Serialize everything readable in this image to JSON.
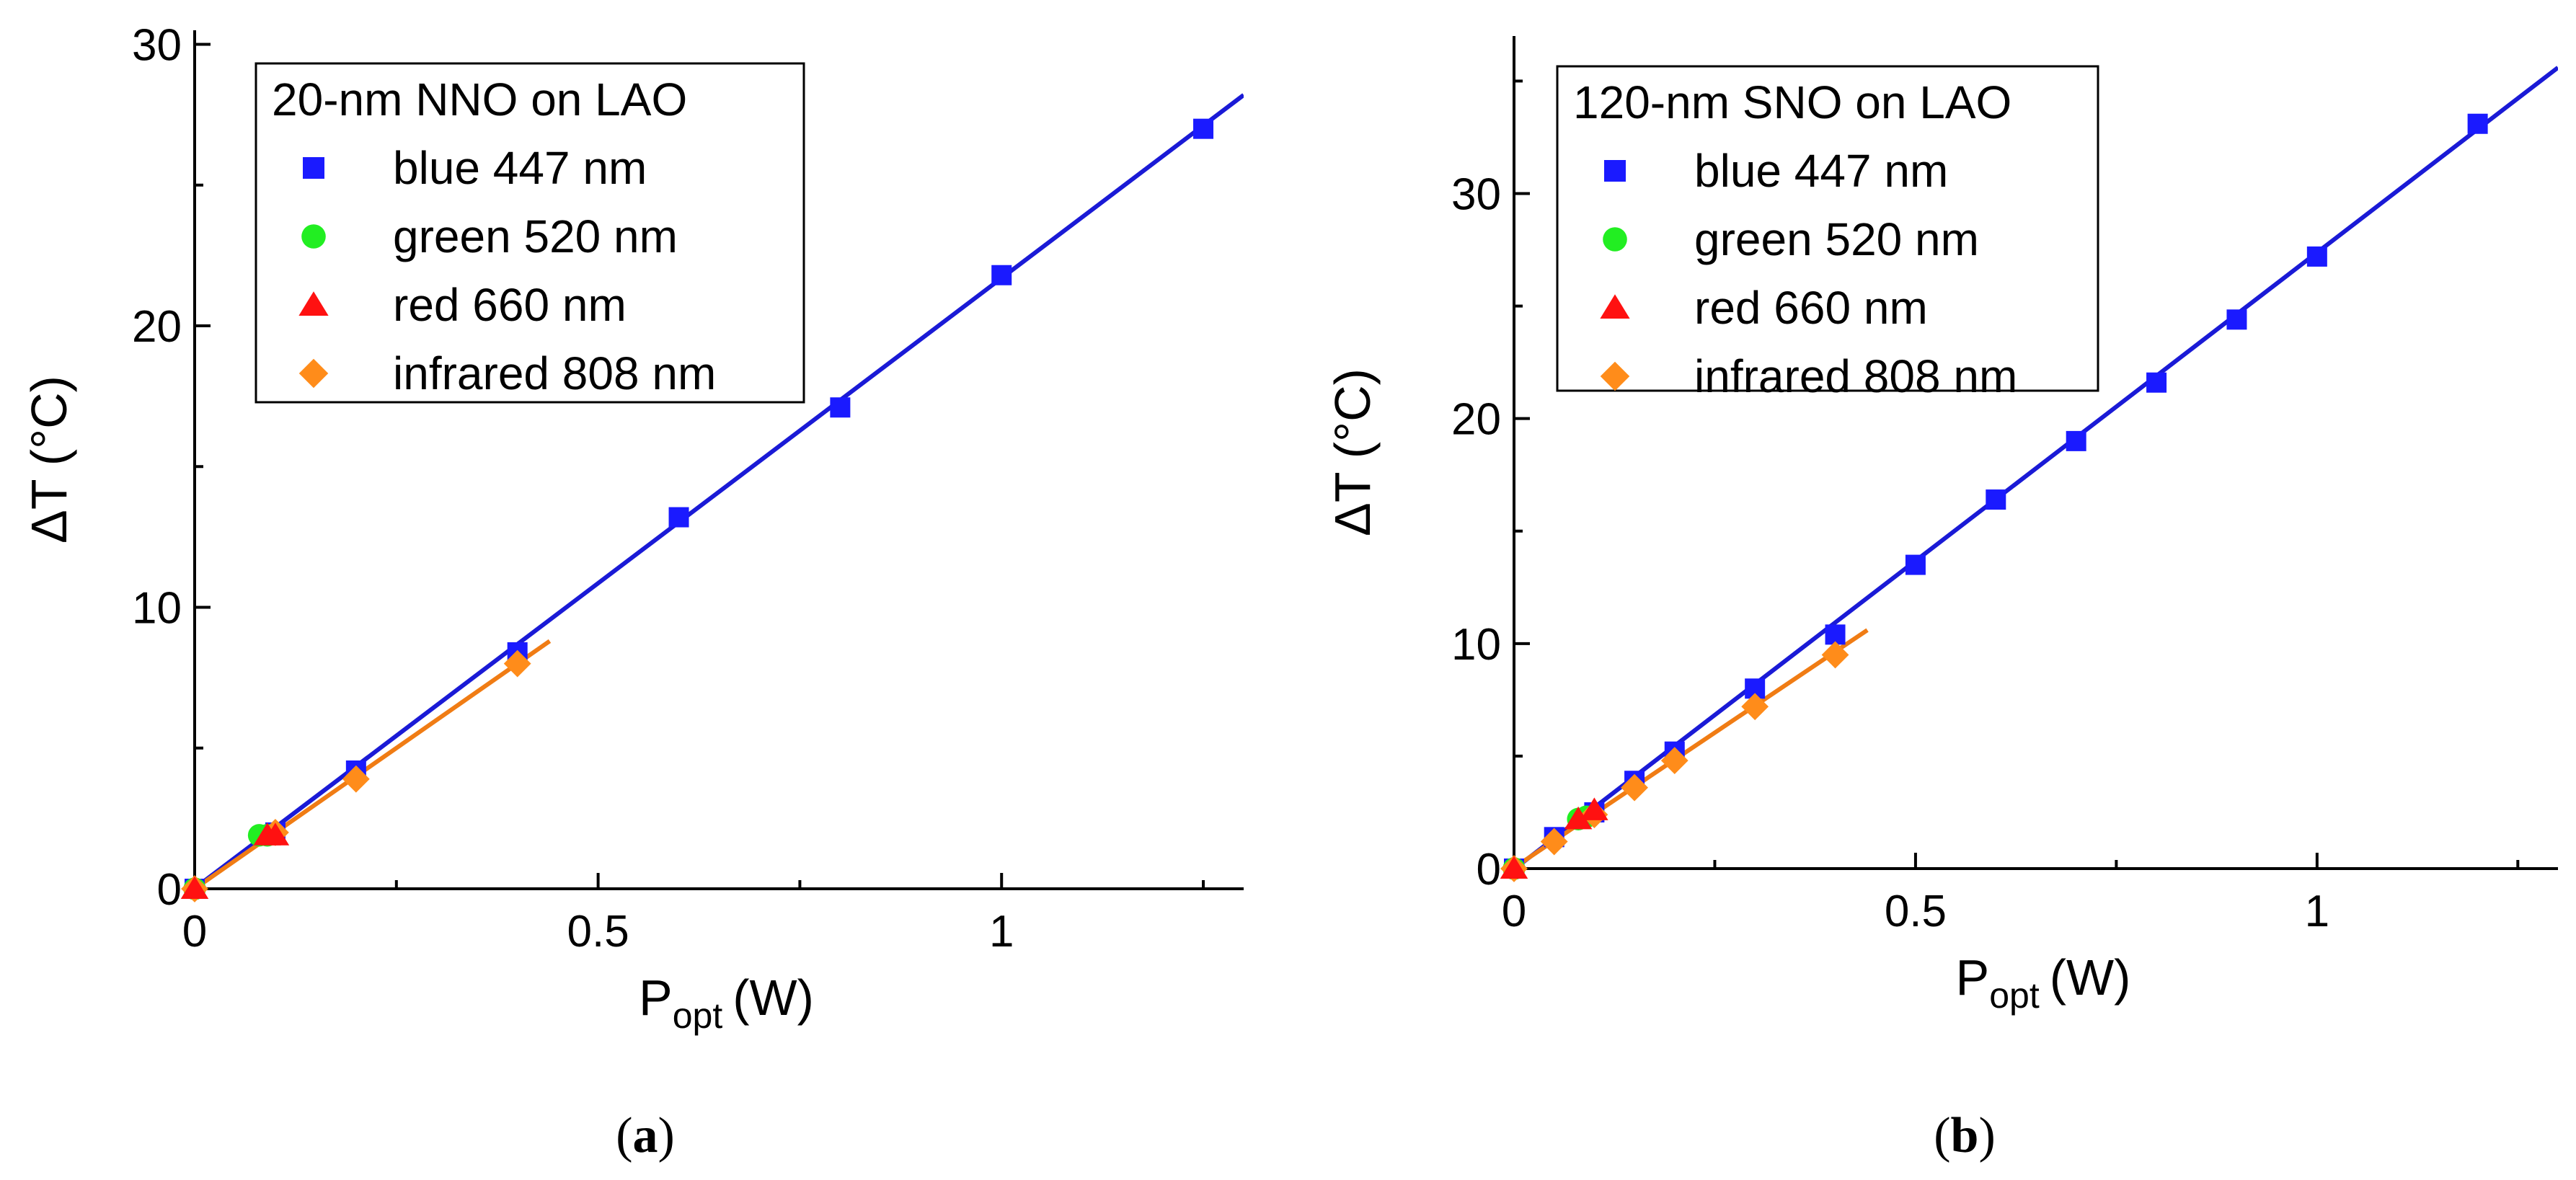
{
  "colors": {
    "blue": "#1a1aff",
    "green": "#22ee22",
    "red": "#ff1111",
    "orange": "#ff8c1a",
    "fit_blue": "#1a1ad6",
    "fit_orange": "#f07c14"
  },
  "chart_data": [
    {
      "type": "scatter",
      "panel": "(a)",
      "caption_letter": "a",
      "title": "20-nm NNO on LAO",
      "xlabel_main": "P",
      "xlabel_sub": "opt",
      "xlabel_unit": "(W)",
      "ylabel": "ΔT (°C)",
      "xlim": [
        0,
        1.3
      ],
      "ylim": [
        0,
        30.5
      ],
      "xticks": [
        0,
        0.5,
        1
      ],
      "xtick_labels": [
        "0",
        "0.5",
        "1"
      ],
      "yticks": [
        0,
        10,
        20,
        30
      ],
      "ytick_labels": [
        "0",
        "10",
        "20",
        "30"
      ],
      "legend_position": "top-left",
      "series": [
        {
          "name": "blue 447 nm",
          "marker": "square",
          "color": "#1a1aff",
          "x": [
            0,
            0.1,
            0.2,
            0.4,
            0.6,
            0.8,
            1.0,
            1.25
          ],
          "y": [
            0,
            2.0,
            4.2,
            8.4,
            13.2,
            17.1,
            21.8,
            27.0
          ]
        },
        {
          "name": "green 520 nm",
          "marker": "circle",
          "color": "#22ee22",
          "x": [
            0,
            0.08,
            0.09
          ],
          "y": [
            0,
            1.9,
            1.9
          ]
        },
        {
          "name": "red 660 nm",
          "marker": "triangle",
          "color": "#ff1111",
          "x": [
            0,
            0.09,
            0.1
          ],
          "y": [
            0,
            1.9,
            1.9
          ]
        },
        {
          "name": "infrared 808 nm",
          "marker": "diamond",
          "color": "#ff8c1a",
          "x": [
            0,
            0.1,
            0.2,
            0.4
          ],
          "y": [
            0,
            2.0,
            3.9,
            8.0
          ]
        }
      ],
      "fits": [
        {
          "name": "blue fit",
          "color": "#1a1ad6",
          "x": [
            -0.01,
            1.3
          ],
          "y": [
            -0.2,
            28.2
          ]
        },
        {
          "name": "infrared fit",
          "color": "#f07c14",
          "x": [
            -0.01,
            0.44
          ],
          "y": [
            -0.2,
            8.8
          ]
        }
      ]
    },
    {
      "type": "scatter",
      "panel": "(b)",
      "caption_letter": "b",
      "title": "120-nm SNO on LAO",
      "xlabel_main": "P",
      "xlabel_sub": "opt",
      "xlabel_unit": "(W)",
      "ylabel": "ΔT (°C)",
      "xlim": [
        0,
        1.3
      ],
      "ylim": [
        0,
        37
      ],
      "xticks": [
        0,
        0.5,
        1
      ],
      "xtick_labels": [
        "0",
        "0.5",
        "1"
      ],
      "yticks": [
        0,
        10,
        20,
        30
      ],
      "ytick_labels": [
        "0",
        "10",
        "20",
        "30"
      ],
      "legend_position": "top-left",
      "series": [
        {
          "name": "blue 447 nm",
          "marker": "square",
          "color": "#1a1aff",
          "x": [
            0,
            0.05,
            0.1,
            0.15,
            0.2,
            0.3,
            0.4,
            0.5,
            0.6,
            0.7,
            0.8,
            0.9,
            1.0,
            1.2
          ],
          "y": [
            0,
            1.4,
            2.5,
            3.9,
            5.2,
            8.0,
            10.4,
            13.5,
            16.4,
            19.0,
            21.6,
            24.4,
            27.2,
            33.1
          ]
        },
        {
          "name": "green 520 nm",
          "marker": "circle",
          "color": "#22ee22",
          "x": [
            0,
            0.08,
            0.09
          ],
          "y": [
            0,
            2.2,
            2.3
          ]
        },
        {
          "name": "red 660 nm",
          "marker": "triangle",
          "color": "#ff1111",
          "x": [
            0,
            0.08,
            0.1
          ],
          "y": [
            0,
            2.2,
            2.6
          ]
        },
        {
          "name": "infrared 808 nm",
          "marker": "diamond",
          "color": "#ff8c1a",
          "x": [
            0,
            0.05,
            0.1,
            0.15,
            0.2,
            0.3,
            0.4
          ],
          "y": [
            0,
            1.2,
            2.4,
            3.6,
            4.8,
            7.2,
            9.5
          ]
        }
      ],
      "fits": [
        {
          "name": "blue fit",
          "color": "#1a1ad6",
          "x": [
            -0.01,
            1.3
          ],
          "y": [
            -0.3,
            35.6
          ]
        },
        {
          "name": "infrared fit",
          "color": "#f07c14",
          "x": [
            -0.01,
            0.44
          ],
          "y": [
            -0.2,
            10.6
          ]
        }
      ]
    }
  ]
}
